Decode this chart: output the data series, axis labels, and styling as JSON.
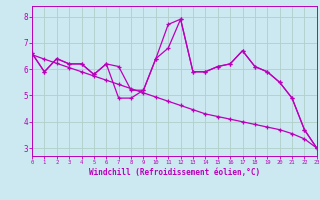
{
  "xlabel": "Windchill (Refroidissement éolien,°C)",
  "x_values": [
    0,
    1,
    2,
    3,
    4,
    5,
    6,
    7,
    8,
    9,
    10,
    11,
    12,
    13,
    14,
    15,
    16,
    17,
    18,
    19,
    20,
    21,
    22,
    23
  ],
  "line1": [
    6.6,
    5.9,
    6.4,
    6.2,
    6.2,
    5.8,
    6.2,
    6.1,
    5.2,
    5.2,
    6.4,
    7.7,
    7.9,
    5.9,
    5.9,
    6.1,
    6.2,
    6.7,
    6.1,
    5.9,
    5.5,
    4.9,
    3.7,
    3.0
  ],
  "line2": [
    6.6,
    5.9,
    6.4,
    6.2,
    6.2,
    5.8,
    6.2,
    4.9,
    4.9,
    5.2,
    6.4,
    6.8,
    7.9,
    5.9,
    5.9,
    6.1,
    6.2,
    6.7,
    6.1,
    5.9,
    5.5,
    4.9,
    3.7,
    3.0
  ],
  "line_trend": [
    6.55,
    6.38,
    6.22,
    6.06,
    5.9,
    5.74,
    5.58,
    5.42,
    5.26,
    5.1,
    4.94,
    4.78,
    4.62,
    4.46,
    4.3,
    4.2,
    4.1,
    4.0,
    3.9,
    3.8,
    3.7,
    3.55,
    3.35,
    3.0
  ],
  "color": "#bb00bb",
  "bg_color": "#cce8f0",
  "grid_color": "#b0d0c8",
  "xlim": [
    0,
    23
  ],
  "ylim": [
    2.7,
    8.4
  ],
  "yticks": [
    3,
    4,
    5,
    6,
    7,
    8
  ],
  "xticks": [
    0,
    1,
    2,
    3,
    4,
    5,
    6,
    7,
    8,
    9,
    10,
    11,
    12,
    13,
    14,
    15,
    16,
    17,
    18,
    19,
    20,
    21,
    22,
    23
  ]
}
